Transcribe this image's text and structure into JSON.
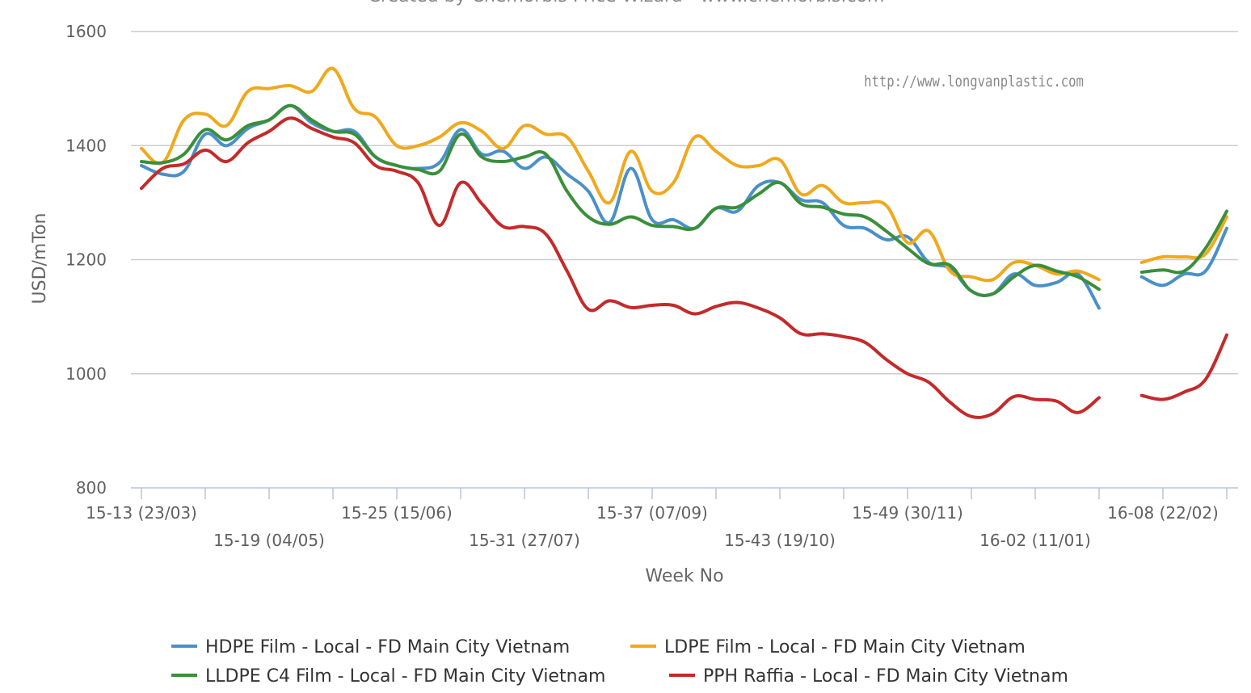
{
  "header_partial": "Created by Chemorbis Price Wizard - www.chemorbis.com",
  "watermark": "http://www.longvanplastic.com",
  "chart_data": {
    "type": "line",
    "xlabel": "Week No",
    "ylabel": "USD/mTon",
    "ylim": [
      800,
      1600
    ],
    "yticks": [
      800,
      1000,
      1200,
      1400,
      1600
    ],
    "grid": true,
    "legend_position": "bottom-center",
    "x_tick_labels": [
      {
        "index": 0,
        "label": "15-13 (23/03)"
      },
      {
        "index": 6,
        "label": "15-19 (04/05)"
      },
      {
        "index": 12,
        "label": "15-25 (15/06)"
      },
      {
        "index": 18,
        "label": "15-31 (27/07)"
      },
      {
        "index": 24,
        "label": "15-37 (07/09)"
      },
      {
        "index": 30,
        "label": "15-43 (19/10)"
      },
      {
        "index": 36,
        "label": "15-49 (30/11)"
      },
      {
        "index": 42,
        "label": "16-02 (11/01)"
      },
      {
        "index": 48,
        "label": "16-08 (22/02)"
      }
    ],
    "series": [
      {
        "name": "HDPE Film - Local - FD Main City Vietnam",
        "color": "#4a90c8",
        "points": [
          [
            0,
            1365
          ],
          [
            1,
            1350
          ],
          [
            2,
            1355
          ],
          [
            3,
            1420
          ],
          [
            4,
            1400
          ],
          [
            5,
            1430
          ],
          [
            6,
            1445
          ],
          [
            7,
            1470
          ],
          [
            8,
            1440
          ],
          [
            9,
            1425
          ],
          [
            10,
            1425
          ],
          [
            11,
            1380
          ],
          [
            12,
            1365
          ],
          [
            13,
            1360
          ],
          [
            14,
            1370
          ],
          [
            15,
            1428
          ],
          [
            16,
            1385
          ],
          [
            17,
            1390
          ],
          [
            18,
            1360
          ],
          [
            19,
            1380
          ],
          [
            20,
            1350
          ],
          [
            21,
            1320
          ],
          [
            22,
            1265
          ],
          [
            23,
            1360
          ],
          [
            24,
            1270
          ],
          [
            25,
            1270
          ],
          [
            26,
            1255
          ],
          [
            27,
            1290
          ],
          [
            28,
            1285
          ],
          [
            29,
            1330
          ],
          [
            30,
            1335
          ],
          [
            31,
            1305
          ],
          [
            32,
            1300
          ],
          [
            33,
            1260
          ],
          [
            34,
            1255
          ],
          [
            35,
            1235
          ],
          [
            36,
            1240
          ],
          [
            37,
            1195
          ],
          [
            38,
            1185
          ],
          [
            39,
            1145
          ],
          [
            40,
            1140
          ],
          [
            41,
            1175
          ],
          [
            42,
            1155
          ],
          [
            43,
            1160
          ],
          [
            44,
            1175
          ],
          [
            45,
            1115
          ],
          [
            47,
            1170
          ],
          [
            48,
            1155
          ],
          [
            49,
            1175
          ],
          [
            50,
            1180
          ],
          [
            51,
            1255
          ]
        ]
      },
      {
        "name": "LDPE Film - Local - FD Main City Vietnam",
        "color": "#f0a91c",
        "points": [
          [
            0,
            1395
          ],
          [
            1,
            1370
          ],
          [
            2,
            1445
          ],
          [
            3,
            1455
          ],
          [
            4,
            1435
          ],
          [
            5,
            1495
          ],
          [
            6,
            1500
          ],
          [
            7,
            1505
          ],
          [
            8,
            1495
          ],
          [
            9,
            1535
          ],
          [
            10,
            1465
          ],
          [
            11,
            1450
          ],
          [
            12,
            1400
          ],
          [
            13,
            1400
          ],
          [
            14,
            1415
          ],
          [
            15,
            1440
          ],
          [
            16,
            1425
          ],
          [
            17,
            1395
          ],
          [
            18,
            1435
          ],
          [
            19,
            1420
          ],
          [
            20,
            1415
          ],
          [
            21,
            1355
          ],
          [
            22,
            1300
          ],
          [
            23,
            1390
          ],
          [
            24,
            1320
          ],
          [
            25,
            1335
          ],
          [
            26,
            1415
          ],
          [
            27,
            1390
          ],
          [
            28,
            1365
          ],
          [
            29,
            1365
          ],
          [
            30,
            1375
          ],
          [
            31,
            1315
          ],
          [
            32,
            1330
          ],
          [
            33,
            1300
          ],
          [
            34,
            1300
          ],
          [
            35,
            1295
          ],
          [
            36,
            1230
          ],
          [
            37,
            1250
          ],
          [
            38,
            1180
          ],
          [
            39,
            1170
          ],
          [
            40,
            1165
          ],
          [
            41,
            1195
          ],
          [
            42,
            1190
          ],
          [
            43,
            1175
          ],
          [
            44,
            1180
          ],
          [
            45,
            1165
          ],
          [
            47,
            1195
          ],
          [
            48,
            1205
          ],
          [
            49,
            1205
          ],
          [
            50,
            1210
          ],
          [
            51,
            1275
          ]
        ]
      },
      {
        "name": "LLDPE C4 Film - Local - FD Main City Vietnam",
        "color": "#3a8f3a",
        "points": [
          [
            0,
            1372
          ],
          [
            1,
            1370
          ],
          [
            2,
            1385
          ],
          [
            3,
            1428
          ],
          [
            4,
            1410
          ],
          [
            5,
            1435
          ],
          [
            6,
            1445
          ],
          [
            7,
            1470
          ],
          [
            8,
            1445
          ],
          [
            9,
            1425
          ],
          [
            10,
            1420
          ],
          [
            11,
            1380
          ],
          [
            12,
            1365
          ],
          [
            13,
            1358
          ],
          [
            14,
            1355
          ],
          [
            15,
            1420
          ],
          [
            16,
            1380
          ],
          [
            17,
            1372
          ],
          [
            18,
            1380
          ],
          [
            19,
            1385
          ],
          [
            20,
            1320
          ],
          [
            21,
            1275
          ],
          [
            22,
            1262
          ],
          [
            23,
            1275
          ],
          [
            24,
            1260
          ],
          [
            25,
            1258
          ],
          [
            26,
            1255
          ],
          [
            27,
            1290
          ],
          [
            28,
            1292
          ],
          [
            29,
            1315
          ],
          [
            30,
            1335
          ],
          [
            31,
            1298
          ],
          [
            32,
            1292
          ],
          [
            33,
            1280
          ],
          [
            34,
            1275
          ],
          [
            35,
            1250
          ],
          [
            36,
            1220
          ],
          [
            37,
            1193
          ],
          [
            38,
            1190
          ],
          [
            39,
            1145
          ],
          [
            40,
            1140
          ],
          [
            41,
            1170
          ],
          [
            42,
            1190
          ],
          [
            43,
            1180
          ],
          [
            44,
            1170
          ],
          [
            45,
            1148
          ],
          [
            47,
            1178
          ],
          [
            48,
            1182
          ],
          [
            49,
            1180
          ],
          [
            50,
            1220
          ],
          [
            51,
            1285
          ]
        ]
      },
      {
        "name": "PPH Raffia - Local - FD Main City Vietnam",
        "color": "#c42a2a",
        "points": [
          [
            0,
            1325
          ],
          [
            1,
            1360
          ],
          [
            2,
            1368
          ],
          [
            3,
            1392
          ],
          [
            4,
            1372
          ],
          [
            5,
            1405
          ],
          [
            6,
            1425
          ],
          [
            7,
            1448
          ],
          [
            8,
            1430
          ],
          [
            9,
            1415
          ],
          [
            10,
            1405
          ],
          [
            11,
            1365
          ],
          [
            12,
            1355
          ],
          [
            13,
            1335
          ],
          [
            14,
            1260
          ],
          [
            15,
            1335
          ],
          [
            16,
            1298
          ],
          [
            17,
            1258
          ],
          [
            18,
            1258
          ],
          [
            19,
            1245
          ],
          [
            20,
            1180
          ],
          [
            21,
            1113
          ],
          [
            22,
            1128
          ],
          [
            23,
            1116
          ],
          [
            24,
            1120
          ],
          [
            25,
            1120
          ],
          [
            26,
            1105
          ],
          [
            27,
            1118
          ],
          [
            28,
            1125
          ],
          [
            29,
            1115
          ],
          [
            30,
            1098
          ],
          [
            31,
            1070
          ],
          [
            32,
            1070
          ],
          [
            33,
            1065
          ],
          [
            34,
            1055
          ],
          [
            35,
            1025
          ],
          [
            36,
            1000
          ],
          [
            37,
            985
          ],
          [
            38,
            950
          ],
          [
            39,
            925
          ],
          [
            40,
            930
          ],
          [
            41,
            960
          ],
          [
            42,
            955
          ],
          [
            43,
            952
          ],
          [
            44,
            932
          ],
          [
            45,
            958
          ],
          [
            47,
            962
          ],
          [
            48,
            955
          ],
          [
            49,
            968
          ],
          [
            50,
            990
          ],
          [
            51,
            1068
          ]
        ]
      }
    ]
  }
}
